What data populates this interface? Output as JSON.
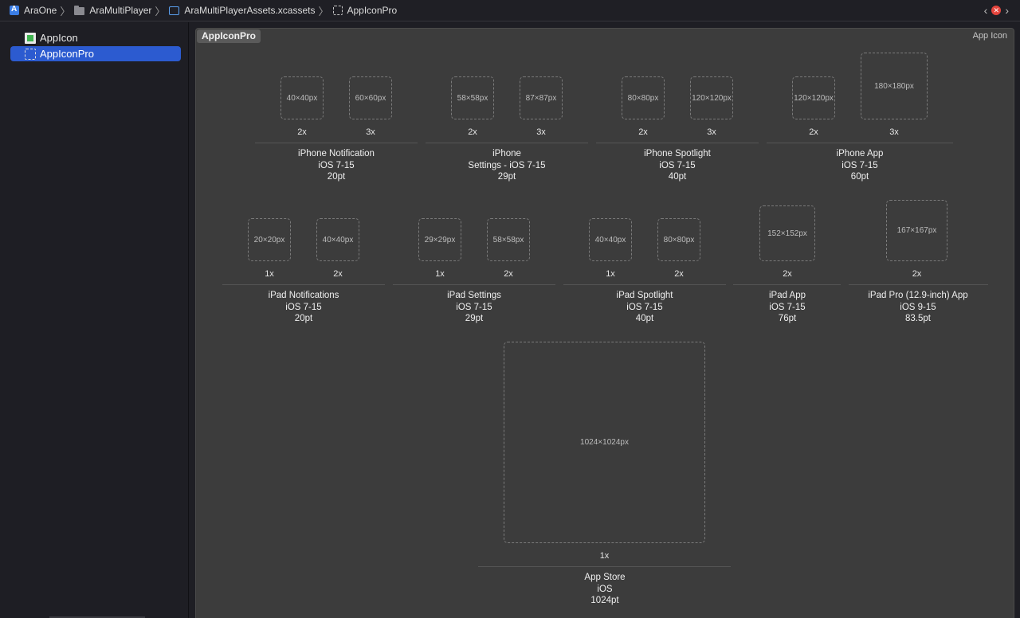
{
  "jumpbar": {
    "crumbs": [
      {
        "label": "AraOne",
        "icon": "project-icon"
      },
      {
        "label": "AraMultiPlayer",
        "icon": "folder-icon"
      },
      {
        "label": "AraMultiPlayerAssets.xcassets",
        "icon": "asset-catalog-icon"
      },
      {
        "label": "AppIconPro",
        "icon": "app-icon-set-icon"
      }
    ],
    "back_glyph": "‹",
    "forward_glyph": "›",
    "error_glyph": "✕",
    "error_color": "#e5453d"
  },
  "sidebar": {
    "items": [
      {
        "label": "AppIcon",
        "selected": false
      },
      {
        "label": "AppIconPro",
        "selected": true
      }
    ],
    "selection_color": "#2c5bd0"
  },
  "editor": {
    "set_name": "AppIconPro",
    "set_kind": "App Icon",
    "groups": [
      {
        "slots": [
          {
            "size": "40×40px",
            "scale": "2x"
          },
          {
            "size": "60×60px",
            "scale": "3x"
          }
        ],
        "caption": [
          "iPhone Notification",
          "iOS 7-15",
          "20pt"
        ]
      },
      {
        "slots": [
          {
            "size": "58×58px",
            "scale": "2x"
          },
          {
            "size": "87×87px",
            "scale": "3x"
          }
        ],
        "caption": [
          "iPhone",
          "Settings - iOS 7-15",
          "29pt"
        ]
      },
      {
        "slots": [
          {
            "size": "80×80px",
            "scale": "2x"
          },
          {
            "size": "120×120px",
            "scale": "3x"
          }
        ],
        "caption": [
          "iPhone Spotlight",
          "iOS 7-15",
          "40pt"
        ]
      },
      {
        "slots": [
          {
            "size": "120×120px",
            "scale": "2x"
          },
          {
            "size": "180×180px",
            "scale": "3x"
          }
        ],
        "caption": [
          "iPhone App",
          "iOS 7-15",
          "60pt"
        ]
      },
      {
        "slots": [
          {
            "size": "20×20px",
            "scale": "1x"
          },
          {
            "size": "40×40px",
            "scale": "2x"
          }
        ],
        "caption": [
          "iPad Notifications",
          "iOS 7-15",
          "20pt"
        ]
      },
      {
        "slots": [
          {
            "size": "29×29px",
            "scale": "1x"
          },
          {
            "size": "58×58px",
            "scale": "2x"
          }
        ],
        "caption": [
          "iPad Settings",
          "iOS 7-15",
          "29pt"
        ]
      },
      {
        "slots": [
          {
            "size": "40×40px",
            "scale": "1x"
          },
          {
            "size": "80×80px",
            "scale": "2x"
          }
        ],
        "caption": [
          "iPad Spotlight",
          "iOS 7-15",
          "40pt"
        ]
      },
      {
        "slots": [
          {
            "size": "152×152px",
            "scale": "2x"
          }
        ],
        "caption": [
          "iPad App",
          "iOS 7-15",
          "76pt"
        ]
      },
      {
        "slots": [
          {
            "size": "167×167px",
            "scale": "2x"
          }
        ],
        "caption": [
          "iPad Pro (12.9-inch) App",
          "iOS 9-15",
          "83.5pt"
        ]
      },
      {
        "slots": [
          {
            "size": "1024×1024px",
            "scale": "1x"
          }
        ],
        "caption": [
          "App Store",
          "iOS",
          "1024pt"
        ]
      }
    ]
  }
}
